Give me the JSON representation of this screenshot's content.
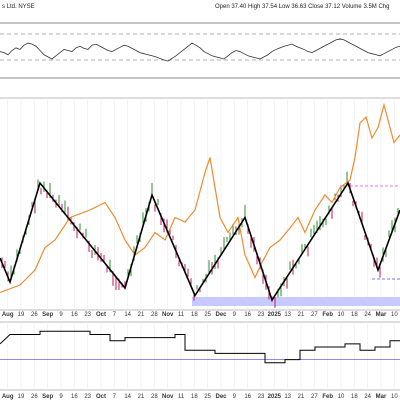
{
  "header": {
    "symbol_suffix": "s Ltd. NYSE",
    "ohlcv": [
      {
        "label": "Open",
        "value": "37.40"
      },
      {
        "label": "High",
        "value": "37.54"
      },
      {
        "label": "Low",
        "value": "36.63"
      },
      {
        "label": "Close",
        "value": "37.12"
      },
      {
        "label": "Volume",
        "value": "3.5M"
      },
      {
        "label": "Chg",
        "value": ""
      }
    ],
    "ohlcv_text": "Open 37.40  High 37.54  Low 36.63  Close 37.12  Volume 3.5M  Chg"
  },
  "colors": {
    "price_bar_up": "#2e8b2e",
    "price_bar_down": "#c2185b",
    "zigzag": "#000000",
    "overlay_line": "#f28a2e",
    "support_band": "#c7c9ff",
    "resistance_line": "#d84bd8",
    "lower_support_line": "#4b4bd8",
    "oscillator_fill": "#b0b0b0",
    "panel_line": "#000000"
  },
  "chart_data": [
    {
      "type": "line",
      "panel": "top-oscillator",
      "description_series": "oscillator",
      "x": [
        0,
        4,
        8,
        12,
        16,
        20,
        24,
        28,
        32,
        36,
        40,
        44,
        48,
        52,
        56,
        60,
        64,
        68,
        72,
        76,
        80,
        84,
        88,
        92,
        96,
        100,
        104,
        108,
        112,
        116,
        120,
        124,
        128,
        132,
        136,
        140,
        144,
        148,
        152,
        156,
        160,
        164,
        168,
        172,
        176,
        180,
        184,
        188,
        192,
        196,
        200,
        204,
        208,
        212,
        216,
        220,
        224,
        228,
        232,
        236,
        240,
        244,
        248,
        252,
        256,
        260,
        264,
        268,
        272,
        276,
        280,
        284,
        288,
        292,
        296,
        300,
        304,
        308,
        312,
        316,
        320,
        324,
        328,
        332,
        336,
        340,
        344,
        348,
        352,
        356,
        360,
        364,
        368,
        372,
        376,
        380,
        384,
        388,
        392,
        396,
        400
      ],
      "values": [
        48,
        46,
        42,
        50,
        55,
        52,
        60,
        64,
        62,
        58,
        50,
        42,
        38,
        34,
        40,
        46,
        52,
        50,
        48,
        55,
        58,
        54,
        52,
        60,
        62,
        58,
        54,
        50,
        48,
        52,
        56,
        60,
        58,
        54,
        50,
        46,
        44,
        42,
        40,
        38,
        35,
        32,
        30,
        35,
        40,
        46,
        52,
        58,
        64,
        60,
        55,
        48,
        44,
        40,
        38,
        36,
        34,
        40,
        46,
        50,
        48,
        44,
        40,
        38,
        36,
        34,
        38,
        42,
        48,
        52,
        55,
        58,
        60,
        62,
        58,
        55,
        52,
        48,
        46,
        50,
        54,
        58,
        62,
        66,
        70,
        72,
        70,
        66,
        62,
        58,
        54,
        50,
        46,
        44,
        42,
        40,
        44,
        48,
        52,
        56,
        58
      ],
      "reference_levels": [
        70,
        30
      ]
    },
    {
      "type": "bar",
      "panel": "main-price",
      "x_ticks": [
        "Aug",
        "19",
        "26",
        "Sep",
        "9",
        "16",
        "23",
        "Oct",
        "7",
        "14",
        "21",
        "28",
        "Nov",
        "11",
        "18",
        "25",
        "Dec",
        "9",
        "16",
        "23",
        "2025",
        "13",
        "21",
        "27",
        "Feb",
        "10",
        "18",
        "24",
        "Mar",
        "10"
      ],
      "zigzag_points": [
        [
          0,
          72
        ],
        [
          10,
          88
        ],
        [
          40,
          22
        ],
        [
          125,
          92
        ],
        [
          152,
          30
        ],
        [
          195,
          97
        ],
        [
          245,
          45
        ],
        [
          272,
          100
        ],
        [
          348,
          22
        ],
        [
          378,
          80
        ],
        [
          400,
          40
        ]
      ],
      "overlay_line_points": [
        [
          0,
          95
        ],
        [
          20,
          90
        ],
        [
          35,
          80
        ],
        [
          45,
          65
        ],
        [
          55,
          60
        ],
        [
          70,
          45
        ],
        [
          90,
          40
        ],
        [
          105,
          35
        ],
        [
          115,
          45
        ],
        [
          125,
          60
        ],
        [
          135,
          70
        ],
        [
          145,
          65
        ],
        [
          155,
          55
        ],
        [
          165,
          60
        ],
        [
          175,
          45
        ],
        [
          185,
          48
        ],
        [
          195,
          40
        ],
        [
          205,
          15
        ],
        [
          210,
          5
        ],
        [
          215,
          25
        ],
        [
          220,
          45
        ],
        [
          228,
          55
        ],
        [
          238,
          45
        ],
        [
          245,
          70
        ],
        [
          255,
          85
        ],
        [
          262,
          75
        ],
        [
          270,
          65
        ],
        [
          280,
          60
        ],
        [
          290,
          52
        ],
        [
          298,
          45
        ],
        [
          305,
          55
        ],
        [
          315,
          40
        ],
        [
          325,
          30
        ],
        [
          332,
          35
        ],
        [
          340,
          25
        ],
        [
          350,
          20
        ],
        [
          355,
          5
        ],
        [
          360,
          -18
        ],
        [
          366,
          -22
        ],
        [
          372,
          -8
        ],
        [
          378,
          -15
        ],
        [
          384,
          -30
        ],
        [
          388,
          -20
        ],
        [
          394,
          -5
        ],
        [
          400,
          -10
        ]
      ],
      "resistance_level_norm": 24,
      "lower_level_norm": 86,
      "support_band_norm": [
        98,
        104
      ]
    },
    {
      "type": "line",
      "panel": "bottom-indicator",
      "step_points": [
        [
          0,
          30
        ],
        [
          10,
          15
        ],
        [
          40,
          15
        ],
        [
          40,
          10
        ],
        [
          90,
          10
        ],
        [
          90,
          15
        ],
        [
          110,
          15
        ],
        [
          110,
          25
        ],
        [
          125,
          25
        ],
        [
          125,
          20
        ],
        [
          175,
          20
        ],
        [
          175,
          15
        ],
        [
          185,
          15
        ],
        [
          185,
          40
        ],
        [
          215,
          40
        ],
        [
          215,
          45
        ],
        [
          265,
          45
        ],
        [
          265,
          60
        ],
        [
          285,
          60
        ],
        [
          285,
          55
        ],
        [
          300,
          55
        ],
        [
          300,
          40
        ],
        [
          315,
          40
        ],
        [
          315,
          35
        ],
        [
          345,
          35
        ],
        [
          345,
          30
        ],
        [
          360,
          30
        ],
        [
          360,
          40
        ],
        [
          375,
          40
        ],
        [
          375,
          35
        ],
        [
          390,
          35
        ],
        [
          390,
          25
        ],
        [
          400,
          25
        ]
      ],
      "reference_level": 55
    }
  ]
}
